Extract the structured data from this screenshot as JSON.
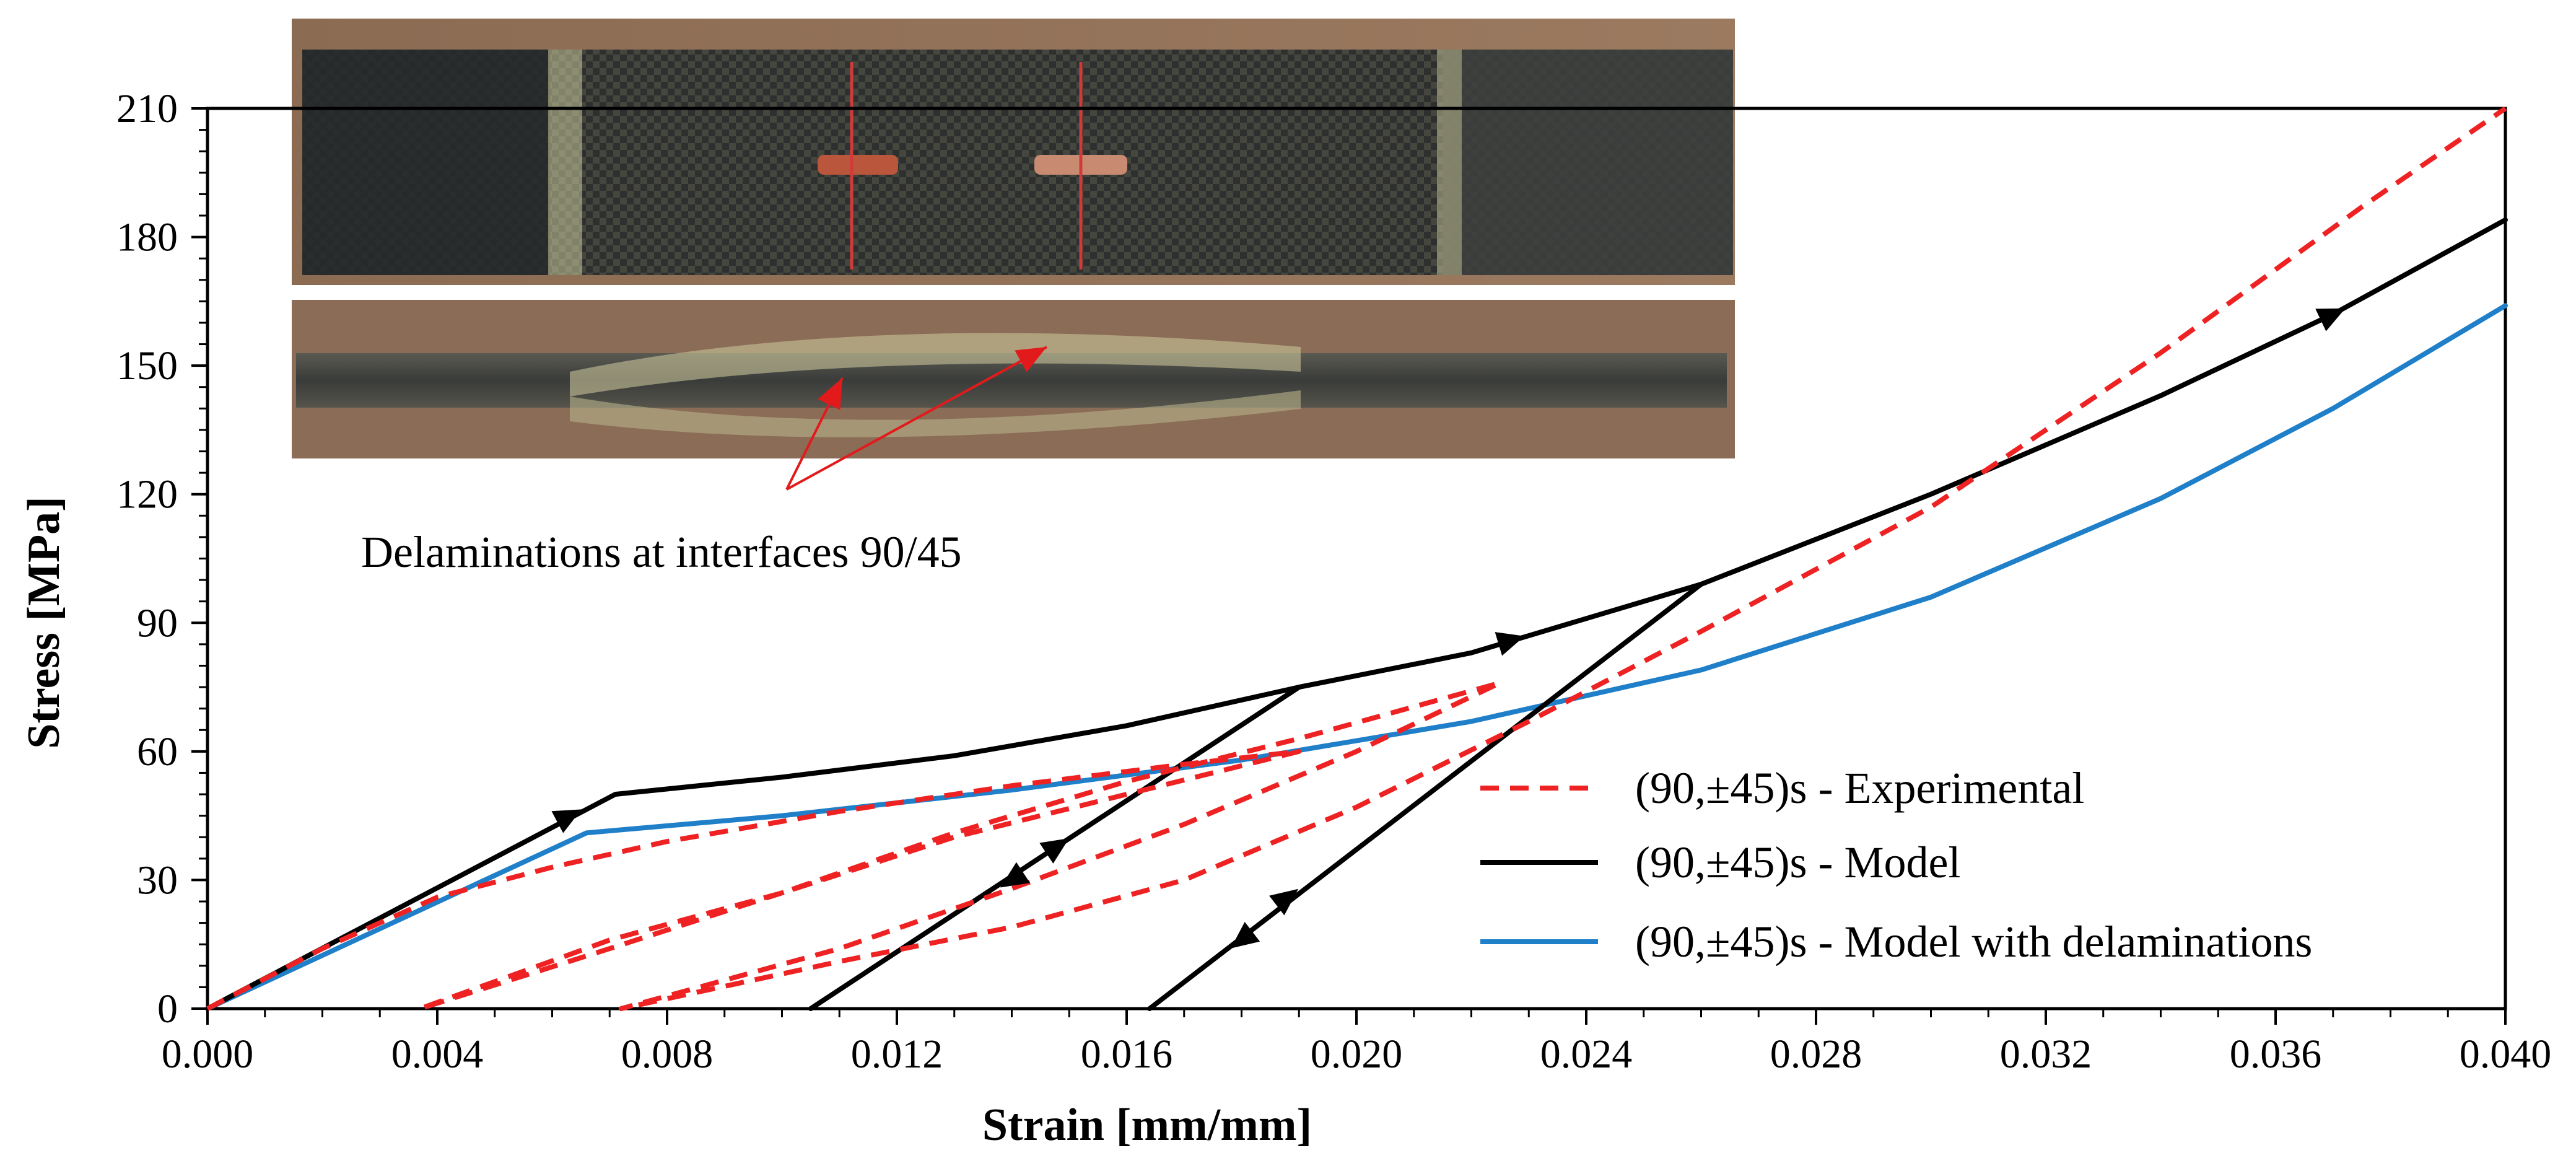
{
  "chart_data": {
    "type": "line",
    "xlabel": "Strain [mm/mm]",
    "ylabel": "Stress [MPa]",
    "xlim": [
      0.0,
      0.04
    ],
    "ylim": [
      0,
      210
    ],
    "x_ticks": [
      "0.000",
      "0.004",
      "0.008",
      "0.012",
      "0.016",
      "0.020",
      "0.024",
      "0.028",
      "0.032",
      "0.036",
      "0.040"
    ],
    "y_ticks": [
      "0",
      "30",
      "60",
      "90",
      "120",
      "150",
      "180",
      "210"
    ],
    "grid": false,
    "legend_position": "bottom-right",
    "colors": {
      "experimental": "#ee2222",
      "model": "#000000",
      "model_delam": "#1f7fc9",
      "annotation": "#e31a1c"
    },
    "series": [
      {
        "name": "(90,±45)s - Experimental",
        "style": "dashed",
        "points": [
          [
            0.0,
            0
          ],
          [
            0.002,
            14
          ],
          [
            0.004,
            26
          ],
          [
            0.006,
            33
          ],
          [
            0.008,
            39
          ],
          [
            0.011,
            46
          ],
          [
            0.014,
            52
          ],
          [
            0.017,
            57
          ],
          [
            0.019,
            60
          ],
          [
            0.016,
            50
          ],
          [
            0.013,
            40
          ],
          [
            0.01,
            27
          ],
          [
            0.007,
            14
          ],
          [
            0.0037,
            0
          ],
          [
            0.007,
            16
          ],
          [
            0.01,
            27
          ],
          [
            0.013,
            41
          ],
          [
            0.016,
            53
          ],
          [
            0.019,
            63
          ],
          [
            0.0225,
            76
          ],
          [
            0.02,
            60
          ],
          [
            0.017,
            43
          ],
          [
            0.014,
            28
          ],
          [
            0.011,
            14
          ],
          [
            0.0072,
            0
          ],
          [
            0.011,
            11
          ],
          [
            0.014,
            19
          ],
          [
            0.017,
            30
          ],
          [
            0.02,
            47
          ],
          [
            0.023,
            67
          ],
          [
            0.026,
            88
          ],
          [
            0.03,
            117
          ],
          [
            0.034,
            153
          ],
          [
            0.0375,
            187
          ],
          [
            0.04,
            210
          ]
        ]
      },
      {
        "name": "(90,±45)s - Model",
        "style": "solid",
        "points": [
          [
            0.0,
            0
          ],
          [
            0.0071,
            50
          ],
          [
            0.01,
            54
          ],
          [
            0.013,
            59
          ],
          [
            0.016,
            66
          ],
          [
            0.019,
            75
          ],
          [
            0.0105,
            0
          ],
          [
            0.019,
            75
          ],
          [
            0.022,
            83
          ],
          [
            0.026,
            99
          ],
          [
            0.0164,
            0
          ],
          [
            0.026,
            99
          ],
          [
            0.03,
            120
          ],
          [
            0.034,
            143
          ],
          [
            0.037,
            162
          ],
          [
            0.04,
            184
          ]
        ],
        "arrows": [
          {
            "x": 0.0063,
            "y": 45,
            "direction": "up"
          },
          {
            "x": 0.0227,
            "y": 86,
            "direction": "up"
          },
          {
            "x": 0.037,
            "y": 162,
            "direction": "up"
          },
          {
            "x": 0.0148,
            "y": 38,
            "direction": "up"
          },
          {
            "x": 0.014,
            "y": 30,
            "direction": "down"
          },
          {
            "x": 0.0188,
            "y": 26,
            "direction": "up"
          },
          {
            "x": 0.018,
            "y": 16,
            "direction": "down"
          }
        ]
      },
      {
        "name": "(90,±45)s - Model with delaminations",
        "style": "solid",
        "points": [
          [
            0.0,
            0
          ],
          [
            0.0066,
            41
          ],
          [
            0.01,
            45
          ],
          [
            0.014,
            51
          ],
          [
            0.018,
            58
          ],
          [
            0.022,
            67
          ],
          [
            0.026,
            79
          ],
          [
            0.03,
            96
          ],
          [
            0.034,
            119
          ],
          [
            0.037,
            140
          ],
          [
            0.04,
            164
          ]
        ]
      }
    ],
    "annotation": {
      "text": "Delaminations at interfaces  90/45"
    }
  }
}
